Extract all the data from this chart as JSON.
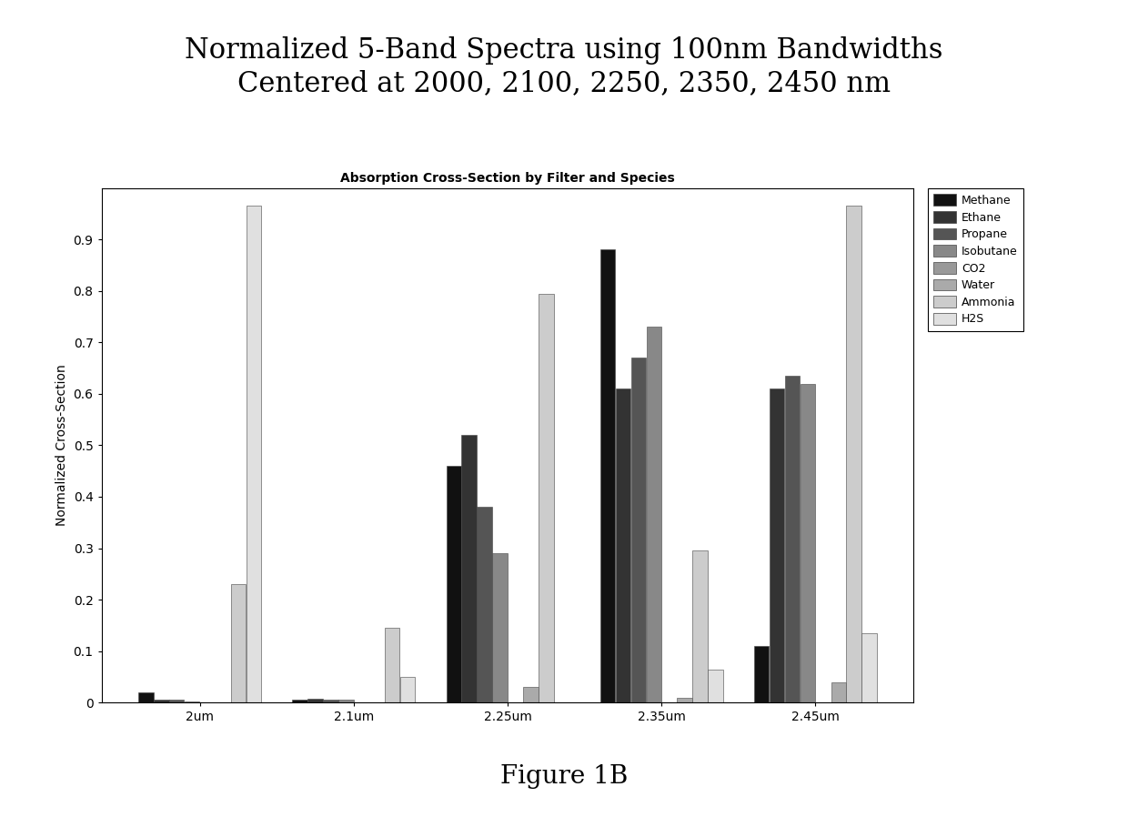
{
  "title": "Normalized 5-Band Spectra using 100nm Bandwidths\nCentered at 2000, 2100, 2250, 2350, 2450 nm",
  "subtitle": "Absorption Cross-Section by Filter and Species",
  "ylabel": "Normalized Cross-Section",
  "figure_caption": "Figure 1B",
  "categories": [
    "2um",
    "2.1um",
    "2.25um",
    "2.35um",
    "2.45um"
  ],
  "species": [
    "Methane",
    "Ethane",
    "Propane",
    "Isobutane",
    "CO2",
    "Water",
    "Ammonia",
    "H2S"
  ],
  "data": {
    "Methane": [
      0.02,
      0.005,
      0.46,
      0.88,
      0.11
    ],
    "Ethane": [
      0.005,
      0.007,
      0.52,
      0.61,
      0.61
    ],
    "Propane": [
      0.005,
      0.005,
      0.38,
      0.67,
      0.635
    ],
    "Isobutane": [
      0.003,
      0.005,
      0.29,
      0.73,
      0.62
    ],
    "CO2": [
      0.0,
      0.0,
      0.0,
      0.0,
      0.0
    ],
    "Water": [
      0.0,
      0.0,
      0.03,
      0.01,
      0.04
    ],
    "Ammonia": [
      0.23,
      0.145,
      0.795,
      0.295,
      0.965
    ],
    "H2S": [
      0.965,
      0.05,
      0.0,
      0.065,
      0.135
    ]
  },
  "bar_colors": {
    "Methane": "#111111",
    "Ethane": "#333333",
    "Propane": "#555555",
    "Isobutane": "#888888",
    "CO2": "#999999",
    "Water": "#aaaaaa",
    "Ammonia": "#cccccc",
    "H2S": "#e0e0e0"
  },
  "ylim": [
    0,
    1.0
  ],
  "yticks": [
    0.0,
    0.1,
    0.2,
    0.3,
    0.4,
    0.5,
    0.6,
    0.7,
    0.8,
    0.9
  ],
  "background_color": "#ffffff",
  "title_fontsize": 22,
  "subtitle_fontsize": 10,
  "ylabel_fontsize": 10,
  "tick_fontsize": 10,
  "caption_fontsize": 20,
  "legend_fontsize": 9
}
